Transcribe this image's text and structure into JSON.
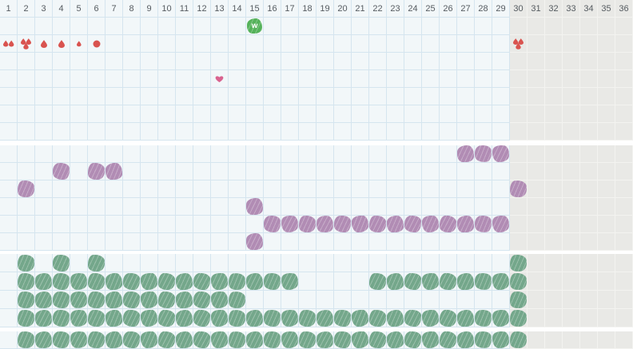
{
  "meta": {
    "total_days": 36,
    "grayed_from_day": 30
  },
  "colors": {
    "cell_bg": "#f2f7f9",
    "grid_line": "#d5e5ef",
    "gray_bg": "#e9e9e6",
    "gray_line": "#f3f3f0",
    "header_text": "#555b60",
    "bleeding_red": "#d9534f",
    "heart_pink": "#d9638f",
    "peak_green": "#55b25a",
    "purple_blob": "#b18cb4",
    "green_blob": "#74a78b"
  },
  "header": {
    "days": [
      1,
      2,
      3,
      4,
      5,
      6,
      7,
      8,
      9,
      10,
      11,
      12,
      13,
      14,
      15,
      16,
      17,
      18,
      19,
      20,
      21,
      22,
      23,
      24,
      25,
      26,
      27,
      28,
      29,
      30,
      31,
      32,
      33,
      34,
      35,
      36
    ]
  },
  "event_section": {
    "rows": [
      {
        "name": "peak-day-row",
        "icons": [
          {
            "day": 15,
            "type": "w-badge",
            "label": "w"
          }
        ]
      },
      {
        "name": "bleeding-row",
        "icons": [
          {
            "day": 1,
            "type": "drops-2"
          },
          {
            "day": 2,
            "type": "drops-3"
          },
          {
            "day": 3,
            "type": "drop"
          },
          {
            "day": 4,
            "type": "drop"
          },
          {
            "day": 5,
            "type": "drop-small"
          },
          {
            "day": 6,
            "type": "dot"
          },
          {
            "day": 30,
            "type": "drops-3"
          }
        ]
      },
      {
        "name": "spacer-row-1",
        "icons": []
      },
      {
        "name": "intimacy-row",
        "icons": [
          {
            "day": 13,
            "type": "heart"
          }
        ]
      },
      {
        "name": "spacer-row-2",
        "icons": []
      },
      {
        "name": "spacer-row-3",
        "icons": []
      },
      {
        "name": "spacer-row-4",
        "icons": []
      }
    ]
  },
  "purple_section": {
    "rows": [
      {
        "days": [
          27,
          28,
          29
        ]
      },
      {
        "days": [
          4,
          6,
          7
        ]
      },
      {
        "days": [
          2,
          30
        ]
      },
      {
        "days": [
          15
        ]
      },
      {
        "days": [
          16,
          17,
          18,
          19,
          20,
          21,
          22,
          23,
          24,
          25,
          26,
          27,
          28,
          29
        ]
      },
      {
        "days": [
          15
        ]
      }
    ]
  },
  "green_section": {
    "rows": [
      {
        "days": [
          2,
          4,
          6,
          30
        ]
      },
      {
        "days": [
          2,
          3,
          4,
          5,
          6,
          7,
          8,
          9,
          10,
          11,
          12,
          13,
          14,
          15,
          16,
          17,
          22,
          23,
          24,
          25,
          26,
          27,
          28,
          29,
          30
        ]
      },
      {
        "days": [
          2,
          3,
          4,
          5,
          6,
          7,
          8,
          9,
          10,
          11,
          12,
          13,
          14,
          30
        ]
      },
      {
        "days": [
          2,
          3,
          4,
          5,
          6,
          7,
          8,
          9,
          10,
          11,
          12,
          13,
          14,
          15,
          16,
          17,
          18,
          19,
          20,
          21,
          22,
          23,
          24,
          25,
          26,
          27,
          28,
          29,
          30
        ]
      }
    ]
  },
  "green_footer_section": {
    "rows": [
      {
        "days": [
          2,
          3,
          4,
          5,
          6,
          7,
          8,
          9,
          10,
          11,
          12,
          13,
          14,
          15,
          16,
          17,
          18,
          19,
          20,
          21,
          22,
          23,
          24,
          25,
          26,
          27,
          28,
          29,
          30
        ]
      }
    ]
  }
}
